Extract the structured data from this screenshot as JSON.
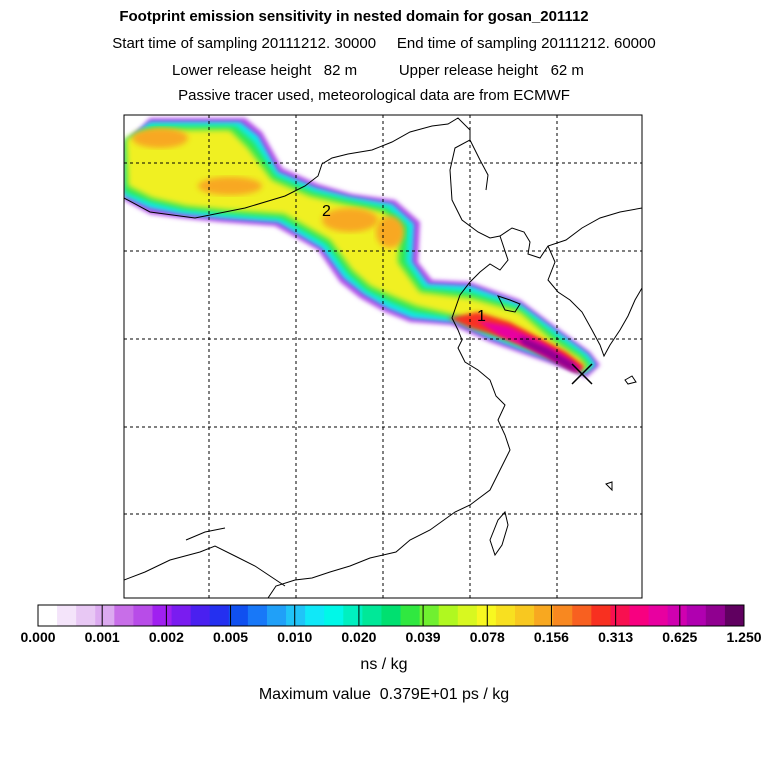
{
  "header": {
    "title": "Footprint emission sensitivity in nested domain for gosan_201112",
    "sampling": "Start time of sampling 20111212. 30000     End time of sampling 20111212. 60000",
    "release": "Lower release height   82 m          Upper release height   62 m",
    "tracer": "Passive tracer used, meteorological data are from ECMWF"
  },
  "map": {
    "markers": [
      {
        "label": "2"
      },
      {
        "label": "1"
      }
    ],
    "receptor_icon": "cross-marker-icon"
  },
  "colorbar": {
    "tick_labels": [
      "0.000",
      "0.001",
      "0.002",
      "0.005",
      "0.010",
      "0.020",
      "0.039",
      "0.078",
      "0.156",
      "0.313",
      "0.625",
      "1.250"
    ],
    "colors": [
      "#ffffff",
      "#f4e4fa",
      "#e8c8f4",
      "#dcaaf0",
      "#c86ee8",
      "#b84ce8",
      "#a020f0",
      "#7a1cf0",
      "#4a20f0",
      "#2430f0",
      "#1050f0",
      "#1878f8",
      "#20a0f8",
      "#20c4f8",
      "#10e8f8",
      "#00f8e8",
      "#00f0c0",
      "#00e898",
      "#00e070",
      "#30e840",
      "#70f030",
      "#b0f820",
      "#d8f820",
      "#f8f820",
      "#f8e020",
      "#f8c820",
      "#f8a820",
      "#f88820",
      "#f86020",
      "#f83020",
      "#f81050",
      "#f80080",
      "#e800a0",
      "#d000b0",
      "#b000b0",
      "#900090",
      "#600060"
    ],
    "unit": "ns / kg",
    "max_label": "Maximum value  0.379E+01 ps / kg"
  }
}
